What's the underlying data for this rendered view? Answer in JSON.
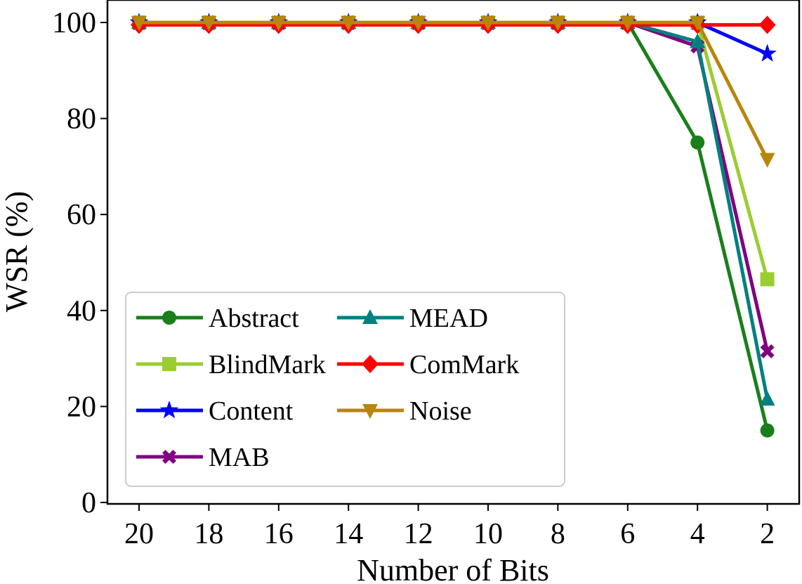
{
  "chart_data": {
    "type": "line",
    "xlabel": "Number of Bits",
    "ylabel": "WSR (%)",
    "x_reversed": true,
    "ylim": [
      0,
      100
    ],
    "yticks": [
      0,
      20,
      40,
      60,
      80,
      100
    ],
    "categories": [
      "20",
      "18",
      "16",
      "14",
      "12",
      "10",
      "8",
      "6",
      "4",
      "2"
    ],
    "grid": false,
    "legend_position": "lower-left",
    "legend_columns": 2,
    "series": [
      {
        "name": "Abstract",
        "color": "#1a7f1a",
        "marker": "circle",
        "values": [
          100,
          100,
          100,
          100,
          100,
          100,
          100,
          100,
          75,
          15
        ]
      },
      {
        "name": "BlindMark",
        "color": "#9acd32",
        "marker": "square",
        "values": [
          100,
          100,
          100,
          100,
          100,
          100,
          100,
          100,
          100,
          46.5
        ]
      },
      {
        "name": "Content",
        "color": "#0000ff",
        "marker": "star",
        "values": [
          100,
          100,
          100,
          100,
          100,
          100,
          100,
          100,
          100,
          93.5
        ]
      },
      {
        "name": "MAB",
        "color": "#800080",
        "marker": "x",
        "values": [
          100,
          100,
          100,
          100,
          100,
          100,
          100,
          100,
          95,
          31.5
        ]
      },
      {
        "name": "MEAD",
        "color": "#008080",
        "marker": "triangle-up",
        "values": [
          100,
          100,
          100,
          100,
          100,
          100,
          100,
          100,
          96,
          21.5
        ]
      },
      {
        "name": "ComMark",
        "color": "#ff0000",
        "marker": "diamond",
        "values": [
          99.5,
          99.5,
          99.5,
          99.5,
          99.5,
          99.5,
          99.5,
          99.5,
          99.5,
          99.5
        ]
      },
      {
        "name": "Noise",
        "color": "#b8860b",
        "marker": "triangle-down",
        "values": [
          100,
          100,
          100,
          100,
          100,
          100,
          100,
          100,
          100,
          71.5
        ]
      }
    ]
  }
}
